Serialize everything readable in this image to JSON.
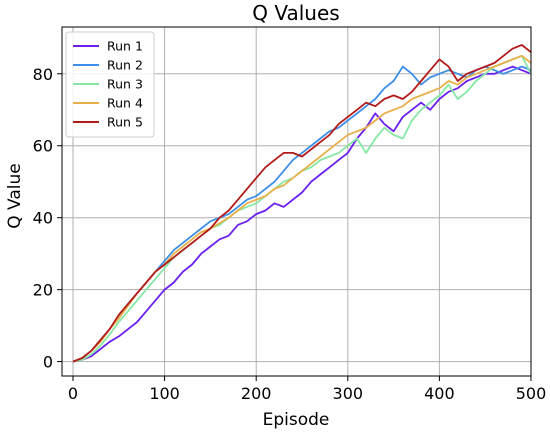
{
  "chart_data": {
    "type": "line",
    "title": "Q Values",
    "xlabel": "Episode",
    "ylabel": "Q Value",
    "xlim": [
      -12,
      500
    ],
    "ylim": [
      -4,
      93
    ],
    "xticks": [
      0,
      100,
      200,
      300,
      400,
      500
    ],
    "yticks": [
      0,
      20,
      40,
      60,
      80
    ],
    "grid": true,
    "legend_position": "top-left",
    "series": [
      {
        "name": "Run 1",
        "color": "#6a1ff0",
        "points": [
          [
            0,
            0
          ],
          [
            10,
            0.5
          ],
          [
            20,
            1.5
          ],
          [
            30,
            3.5
          ],
          [
            40,
            5.5
          ],
          [
            50,
            7
          ],
          [
            60,
            9
          ],
          [
            70,
            11
          ],
          [
            80,
            14
          ],
          [
            90,
            17
          ],
          [
            100,
            20
          ],
          [
            110,
            22
          ],
          [
            120,
            25
          ],
          [
            130,
            27
          ],
          [
            140,
            30
          ],
          [
            150,
            32
          ],
          [
            160,
            34
          ],
          [
            170,
            35
          ],
          [
            180,
            38
          ],
          [
            190,
            39
          ],
          [
            200,
            41
          ],
          [
            210,
            42
          ],
          [
            220,
            44
          ],
          [
            230,
            43
          ],
          [
            240,
            45
          ],
          [
            250,
            47
          ],
          [
            260,
            50
          ],
          [
            270,
            52
          ],
          [
            280,
            54
          ],
          [
            290,
            56
          ],
          [
            300,
            58
          ],
          [
            310,
            62
          ],
          [
            320,
            65
          ],
          [
            330,
            69
          ],
          [
            340,
            66
          ],
          [
            350,
            64
          ],
          [
            360,
            68
          ],
          [
            370,
            70
          ],
          [
            380,
            72
          ],
          [
            390,
            70
          ],
          [
            400,
            73
          ],
          [
            410,
            75
          ],
          [
            420,
            76
          ],
          [
            430,
            78
          ],
          [
            440,
            79
          ],
          [
            450,
            80
          ],
          [
            460,
            80
          ],
          [
            470,
            81
          ],
          [
            480,
            82
          ],
          [
            490,
            81
          ],
          [
            500,
            80
          ]
        ]
      },
      {
        "name": "Run 2",
        "color": "#3d8ee8",
        "points": [
          [
            0,
            0
          ],
          [
            10,
            1
          ],
          [
            20,
            3
          ],
          [
            30,
            6
          ],
          [
            40,
            9
          ],
          [
            50,
            12
          ],
          [
            60,
            16
          ],
          [
            70,
            19
          ],
          [
            80,
            22
          ],
          [
            90,
            25
          ],
          [
            100,
            28
          ],
          [
            110,
            31
          ],
          [
            120,
            33
          ],
          [
            130,
            35
          ],
          [
            140,
            37
          ],
          [
            150,
            39
          ],
          [
            160,
            40
          ],
          [
            170,
            41
          ],
          [
            180,
            43
          ],
          [
            190,
            45
          ],
          [
            200,
            46
          ],
          [
            210,
            48
          ],
          [
            220,
            50
          ],
          [
            230,
            53
          ],
          [
            240,
            56
          ],
          [
            250,
            58
          ],
          [
            260,
            60
          ],
          [
            270,
            62
          ],
          [
            280,
            64
          ],
          [
            290,
            65
          ],
          [
            300,
            67
          ],
          [
            310,
            69
          ],
          [
            320,
            71
          ],
          [
            330,
            73
          ],
          [
            340,
            76
          ],
          [
            350,
            78
          ],
          [
            360,
            82
          ],
          [
            370,
            80
          ],
          [
            380,
            77
          ],
          [
            390,
            79
          ],
          [
            400,
            80
          ],
          [
            410,
            81
          ],
          [
            420,
            80
          ],
          [
            430,
            79
          ],
          [
            440,
            81
          ],
          [
            450,
            82
          ],
          [
            460,
            81
          ],
          [
            470,
            80
          ],
          [
            480,
            81
          ],
          [
            490,
            82
          ],
          [
            500,
            81
          ]
        ]
      },
      {
        "name": "Run 3",
        "color": "#86e8a4",
        "points": [
          [
            0,
            0
          ],
          [
            10,
            0.5
          ],
          [
            20,
            2
          ],
          [
            30,
            4.5
          ],
          [
            40,
            7.5
          ],
          [
            50,
            11
          ],
          [
            60,
            14
          ],
          [
            70,
            17
          ],
          [
            80,
            20
          ],
          [
            90,
            23
          ],
          [
            100,
            26
          ],
          [
            110,
            29
          ],
          [
            120,
            31
          ],
          [
            130,
            33
          ],
          [
            140,
            35
          ],
          [
            150,
            37
          ],
          [
            160,
            38
          ],
          [
            170,
            40
          ],
          [
            180,
            42
          ],
          [
            190,
            43
          ],
          [
            200,
            44
          ],
          [
            210,
            46
          ],
          [
            220,
            48
          ],
          [
            230,
            50
          ],
          [
            240,
            51
          ],
          [
            250,
            53
          ],
          [
            260,
            54
          ],
          [
            270,
            56
          ],
          [
            280,
            57
          ],
          [
            290,
            58
          ],
          [
            300,
            60
          ],
          [
            310,
            62
          ],
          [
            320,
            58
          ],
          [
            330,
            62
          ],
          [
            340,
            65
          ],
          [
            350,
            63
          ],
          [
            360,
            62
          ],
          [
            370,
            67
          ],
          [
            380,
            70
          ],
          [
            390,
            72
          ],
          [
            400,
            74
          ],
          [
            410,
            77
          ],
          [
            420,
            73
          ],
          [
            430,
            75
          ],
          [
            440,
            78
          ],
          [
            450,
            80
          ],
          [
            460,
            82
          ],
          [
            470,
            83
          ],
          [
            480,
            84
          ],
          [
            490,
            85
          ],
          [
            500,
            80
          ]
        ]
      },
      {
        "name": "Run 4",
        "color": "#e8b048",
        "points": [
          [
            0,
            0
          ],
          [
            10,
            1
          ],
          [
            20,
            3
          ],
          [
            30,
            5.5
          ],
          [
            40,
            9
          ],
          [
            50,
            12
          ],
          [
            60,
            15.5
          ],
          [
            70,
            19
          ],
          [
            80,
            22
          ],
          [
            90,
            25
          ],
          [
            100,
            27
          ],
          [
            110,
            30
          ],
          [
            120,
            32
          ],
          [
            130,
            34
          ],
          [
            140,
            36
          ],
          [
            150,
            37
          ],
          [
            160,
            38.5
          ],
          [
            170,
            40
          ],
          [
            180,
            42
          ],
          [
            190,
            44
          ],
          [
            200,
            45
          ],
          [
            210,
            46
          ],
          [
            220,
            48
          ],
          [
            230,
            49
          ],
          [
            240,
            51
          ],
          [
            250,
            53
          ],
          [
            260,
            55
          ],
          [
            270,
            57
          ],
          [
            280,
            59
          ],
          [
            290,
            61
          ],
          [
            300,
            63
          ],
          [
            310,
            64
          ],
          [
            320,
            65
          ],
          [
            330,
            67
          ],
          [
            340,
            69
          ],
          [
            350,
            70
          ],
          [
            360,
            71
          ],
          [
            370,
            73
          ],
          [
            380,
            74
          ],
          [
            390,
            75
          ],
          [
            400,
            76
          ],
          [
            410,
            78
          ],
          [
            420,
            77
          ],
          [
            430,
            79
          ],
          [
            440,
            80
          ],
          [
            450,
            81
          ],
          [
            460,
            82
          ],
          [
            470,
            83
          ],
          [
            480,
            84
          ],
          [
            490,
            85
          ],
          [
            500,
            83
          ]
        ]
      },
      {
        "name": "Run 5",
        "color": "#b31a1a",
        "points": [
          [
            0,
            0
          ],
          [
            10,
            1
          ],
          [
            20,
            3
          ],
          [
            30,
            6
          ],
          [
            40,
            9
          ],
          [
            50,
            13
          ],
          [
            60,
            16
          ],
          [
            70,
            19
          ],
          [
            80,
            22
          ],
          [
            90,
            25
          ],
          [
            100,
            27
          ],
          [
            110,
            29
          ],
          [
            120,
            31
          ],
          [
            130,
            33
          ],
          [
            140,
            35
          ],
          [
            150,
            37
          ],
          [
            160,
            40
          ],
          [
            170,
            42
          ],
          [
            180,
            45
          ],
          [
            190,
            48
          ],
          [
            200,
            51
          ],
          [
            210,
            54
          ],
          [
            220,
            56
          ],
          [
            230,
            58
          ],
          [
            240,
            58
          ],
          [
            250,
            57
          ],
          [
            260,
            59
          ],
          [
            270,
            61
          ],
          [
            280,
            63
          ],
          [
            290,
            66
          ],
          [
            300,
            68
          ],
          [
            310,
            70
          ],
          [
            320,
            72
          ],
          [
            330,
            71
          ],
          [
            340,
            73
          ],
          [
            350,
            74
          ],
          [
            360,
            73
          ],
          [
            370,
            75
          ],
          [
            380,
            78
          ],
          [
            390,
            81
          ],
          [
            400,
            84
          ],
          [
            410,
            82
          ],
          [
            420,
            78
          ],
          [
            430,
            80
          ],
          [
            440,
            81
          ],
          [
            450,
            82
          ],
          [
            460,
            83
          ],
          [
            470,
            85
          ],
          [
            480,
            87
          ],
          [
            490,
            88
          ],
          [
            500,
            86
          ]
        ]
      }
    ]
  }
}
